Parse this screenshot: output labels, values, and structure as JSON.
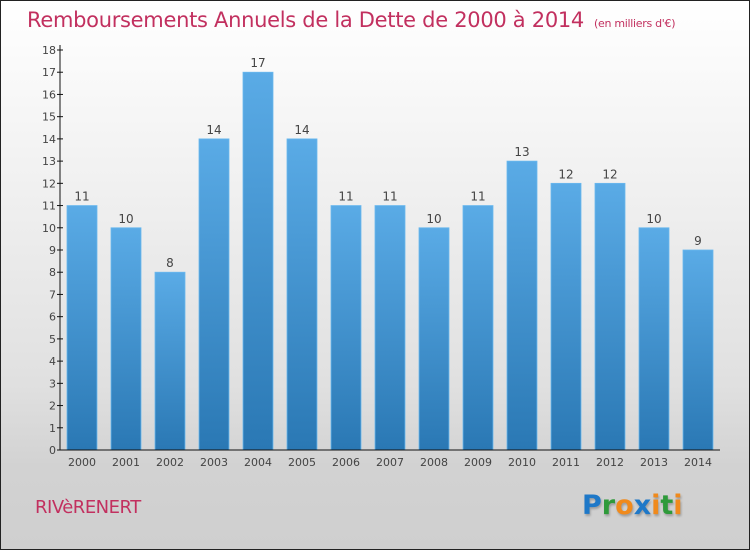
{
  "chart_data": {
    "type": "bar",
    "title": "Remboursements Annuels de la Dette de 2000 à 2014",
    "unit_label": "(en milliers d'€)",
    "xlabel": "",
    "ylabel": "",
    "categories": [
      "2000",
      "2001",
      "2002",
      "2003",
      "2004",
      "2005",
      "2006",
      "2007",
      "2008",
      "2009",
      "2010",
      "2011",
      "2012",
      "2013",
      "2014"
    ],
    "values": [
      11,
      10,
      8,
      14,
      17,
      14,
      11,
      11,
      10,
      11,
      13,
      12,
      12,
      10,
      9
    ],
    "ylim": [
      0,
      18
    ],
    "yticks": [
      0,
      1,
      2,
      3,
      4,
      5,
      6,
      7,
      8,
      9,
      10,
      11,
      12,
      13,
      14,
      15,
      16,
      17,
      18
    ],
    "grid": false,
    "legend": "none",
    "bar_color_top": "#5aabe6",
    "bar_color_bottom": "#2a78b4"
  },
  "footer": {
    "commune": "RIVèRENERT",
    "logo_letters": [
      {
        "ch": "P",
        "color": "#1e78c8"
      },
      {
        "ch": "r",
        "color": "#2e9a3a"
      },
      {
        "ch": "o",
        "color": "#f08a1c"
      },
      {
        "ch": "x",
        "color": "#1e78c8"
      },
      {
        "ch": "i",
        "color": "#f08a1c"
      },
      {
        "ch": "t",
        "color": "#2e9a3a"
      },
      {
        "ch": "i",
        "color": "#f08a1c"
      }
    ]
  },
  "colors": {
    "title": "#c2305f",
    "axis": "#111111"
  }
}
